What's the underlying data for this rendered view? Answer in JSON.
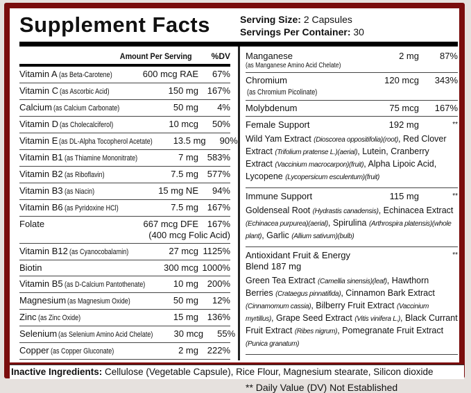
{
  "title": "Supplement Facts",
  "serving": {
    "size_label": "Serving Size:",
    "size_value": "2 Capsules",
    "per_label": "Servings Per Container:",
    "per_value": "30"
  },
  "left": {
    "header_amount": "Amount Per Serving",
    "header_dv": "%DV",
    "rows": [
      {
        "name": "Vitamin A",
        "form": "(as Beta-Carotene)",
        "amount": "600 mcg RAE",
        "dv": "67%"
      },
      {
        "name": "Vitamin C",
        "form": "(as Ascorbic Acid)",
        "amount": "150 mg",
        "dv": "167%"
      },
      {
        "name": "Calcium",
        "form": "(as Calcium Carbonate)",
        "amount": "50 mg",
        "dv": "4%"
      },
      {
        "name": "Vitamin D",
        "form": "(as Cholecalciferol)",
        "amount": "10 mcg",
        "dv": "50%"
      },
      {
        "name": "Vitamin E",
        "form": "(as DL-Alpha Tocopherol Acetate)",
        "amount": "13.5 mg",
        "dv": "90%"
      },
      {
        "name": "Vitamin B1",
        "form": "(as Thiamine Mononitrate)",
        "amount": "7 mg",
        "dv": "583%"
      },
      {
        "name": "Vitamin B2",
        "form": "(as Riboflavin)",
        "amount": "7.5 mg",
        "dv": "577%"
      },
      {
        "name": "Vitamin B3",
        "form": "(as Niacin)",
        "amount": "15 mg NE",
        "dv": "94%"
      },
      {
        "name": "Vitamin B6",
        "form": "(as Pyridoxine HCl)",
        "amount": "7.5 mg",
        "dv": "167%"
      },
      {
        "name": "Folate",
        "form": "",
        "amount": "667 mcg DFE",
        "dv": "167%",
        "sub": "(400 mcg Folic Acid)"
      },
      {
        "name": "Vitamin B12",
        "form": "(as Cyanocobalamin)",
        "amount": "27 mcg",
        "dv": "1125%"
      },
      {
        "name": "Biotin",
        "form": "",
        "amount": "300 mcg",
        "dv": "1000%"
      },
      {
        "name": "Vitamin B5",
        "form": "(as D-Calcium Pantothenate)",
        "amount": "10 mg",
        "dv": "200%"
      },
      {
        "name": "Magnesium",
        "form": "(as Magnesium Oxide)",
        "amount": "50 mg",
        "dv": "12%"
      },
      {
        "name": "Zinc",
        "form": "(as Zinc Oxide)",
        "amount": "15 mg",
        "dv": "136%"
      },
      {
        "name": "Selenium",
        "form": "(as Selenium Amino Acid Chelate)",
        "amount": "30 mcg",
        "dv": "55%"
      },
      {
        "name": "Copper",
        "form": "(as Copper Gluconate)",
        "amount": "2 mg",
        "dv": "222%"
      }
    ]
  },
  "right": {
    "rows": [
      {
        "name": "Manganese",
        "form": "(as Manganese Amino Acid Chelate)",
        "amount": "2 mg",
        "dv": "87%"
      },
      {
        "name": "Chromium",
        "form": "(as Chromium Picolinate)",
        "amount": "120 mcg",
        "dv": "343%"
      },
      {
        "name": "Molybdenum",
        "form": "",
        "amount": "75 mcg",
        "dv": "167%"
      }
    ],
    "blends": [
      {
        "name": "Female Support",
        "amount": "192 mg",
        "dv": "**",
        "parts": [
          [
            "Wild Yam Extract ",
            "(Dioscorea oppositifolia)(root)"
          ],
          [
            ", Red Clover Extract ",
            "(Trifolium pratense L.)(aerial)"
          ],
          [
            ", Lutein, Cranberry Extract ",
            "(Vaccinium macrocarpon)(fruit)"
          ],
          [
            ", Alpha Lipoic Acid, Lycopene ",
            "(Lycopersicum esculentum)(fruit)"
          ]
        ]
      },
      {
        "name": "Immune Support",
        "amount": "115 mg",
        "dv": "**",
        "parts": [
          [
            "Goldenseal Root ",
            "(Hydrastis canadensis)"
          ],
          [
            ", Echinacea Extract ",
            "(Echinacea purpurea)(aerial)"
          ],
          [
            ", Spirulina ",
            "(Arthrospira platensis)(whole plant)"
          ],
          [
            ", Garlic ",
            "(Allium sativum)(bulb)"
          ]
        ]
      },
      {
        "name": "Antioxidant Fruit & Energy Blend 187 mg",
        "amount": "",
        "dv": "**",
        "parts": [
          [
            "Green Tea Extract ",
            "(Camellia sinensis)(leaf)"
          ],
          [
            ", Hawthorn Berries ",
            "(Crataegus pinnatifida)"
          ],
          [
            ", Cinnamon Bark Extract ",
            "(Cinnamomum cassia)"
          ],
          [
            ", Bilberry Fruit Extract ",
            "(Vaccinium myrtillus)"
          ],
          [
            ", Grape Seed Extract ",
            "(Vitis vinifera L.)"
          ],
          [
            ", Black Currant Fruit Extract ",
            "(Ribes nigrum)"
          ],
          [
            ", Pomegranate Fruit Extract ",
            "(Punica granatum)"
          ]
        ]
      }
    ],
    "dv_note": "** Daily Value (DV) Not Established"
  },
  "inactive": {
    "label": "Inactive Ingredients:",
    "text": " Cellulose (Vegetable Capsule), Rice Flour, Magnesium stearate, Silicon dioxide"
  },
  "colors": {
    "frame": "#7a0d0d"
  }
}
